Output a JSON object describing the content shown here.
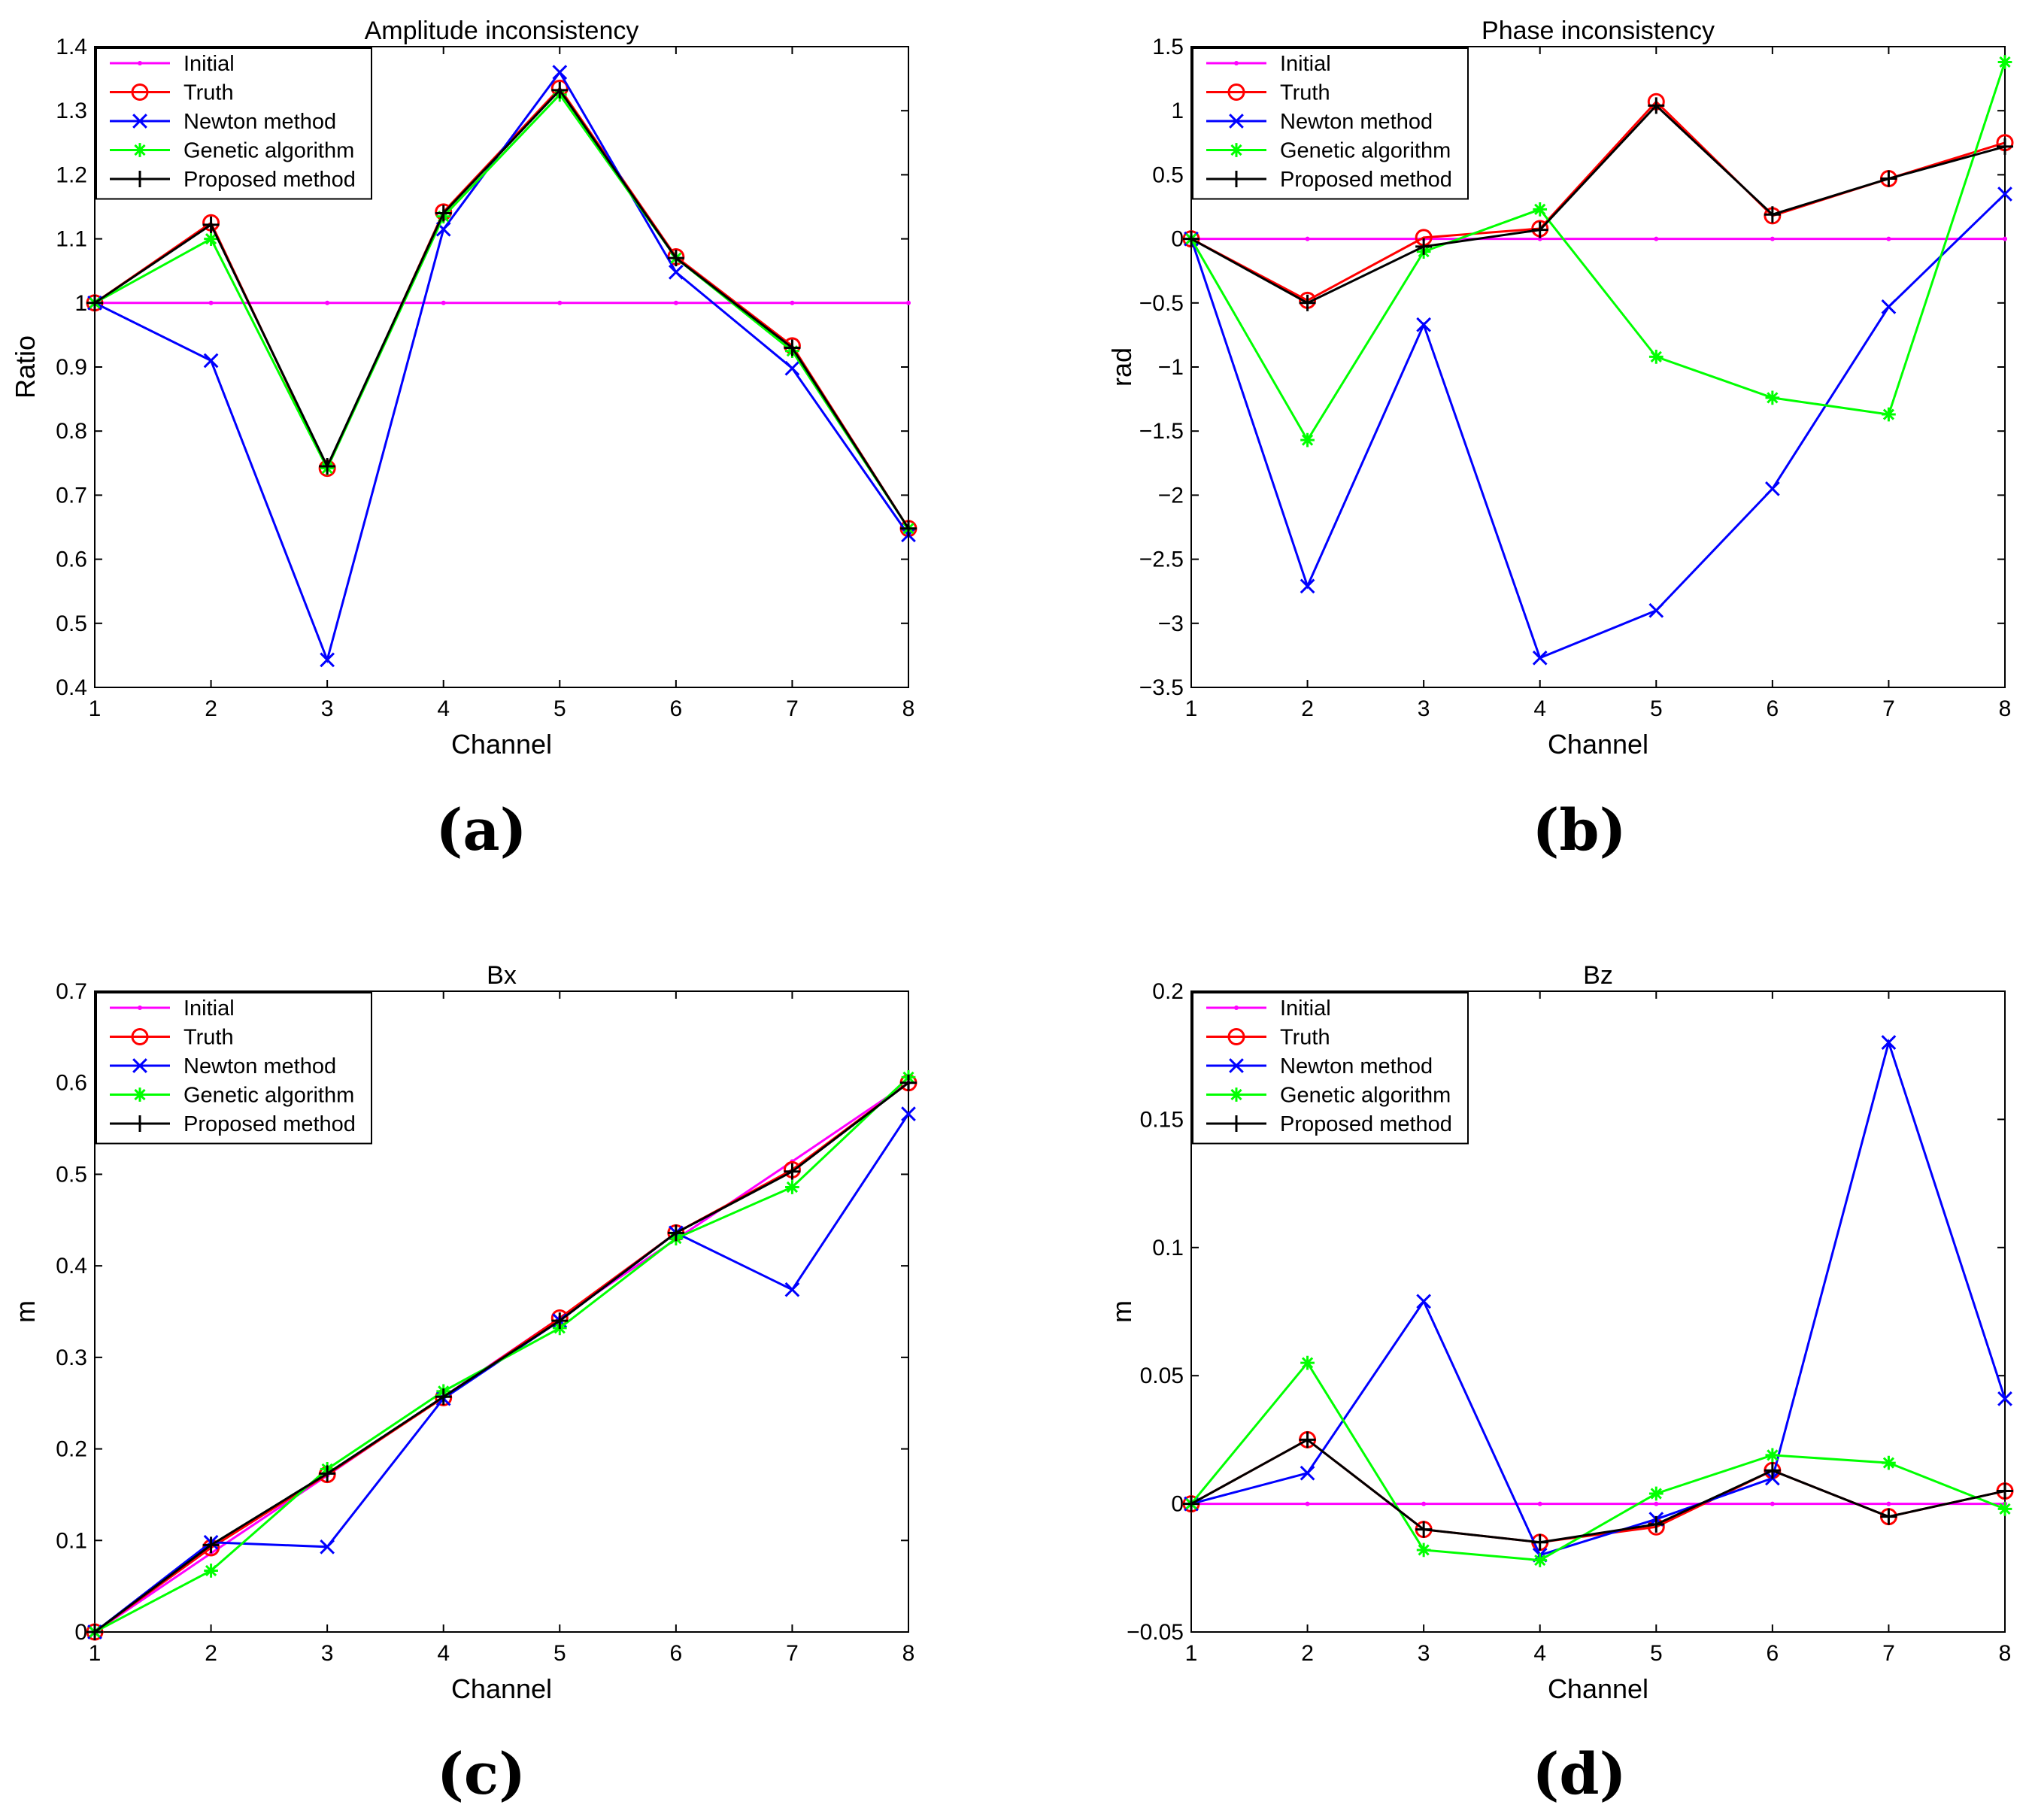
{
  "colors": {
    "Initial": "#ff00ff",
    "Truth": "#ff0000",
    "Newton method": "#0000ff",
    "Genetic algorithm": "#00ff00",
    "Proposed method": "#000000"
  },
  "markers": {
    "Initial": "dot",
    "Truth": "circle",
    "Newton method": "x",
    "Genetic algorithm": "star",
    "Proposed method": "plus"
  },
  "chart_data": [
    {
      "type": "line",
      "caption": "(a)",
      "title": "Amplitude inconsistency",
      "xlabel": "Channel",
      "ylabel": "Ratio",
      "xlim": [
        1,
        8
      ],
      "ylim": [
        0.4,
        1.4
      ],
      "xticks": [
        1,
        2,
        3,
        4,
        5,
        6,
        7,
        8
      ],
      "xtick_labels": [
        "1",
        "2",
        "3",
        "4",
        "5",
        "6",
        "7",
        "8"
      ],
      "yticks": [
        0.4,
        0.5,
        0.6,
        0.7,
        0.8,
        0.9,
        1.0,
        1.1,
        1.2,
        1.3,
        1.4
      ],
      "ytick_labels": [
        "0.4",
        "0.5",
        "0.6",
        "0.7",
        "0.8",
        "0.9",
        "1",
        "1.1",
        "1.2",
        "1.3",
        "1.4"
      ],
      "legend_position": "top-left",
      "x": [
        1,
        2,
        3,
        4,
        5,
        6,
        7,
        8
      ],
      "series": [
        {
          "name": "Initial",
          "values": [
            1,
            1,
            1,
            1,
            1,
            1,
            1,
            1
          ]
        },
        {
          "name": "Truth",
          "values": [
            1.0,
            1.125,
            0.742,
            1.142,
            1.335,
            1.072,
            0.933,
            0.648
          ]
        },
        {
          "name": "Newton method",
          "values": [
            1.0,
            0.91,
            0.443,
            1.115,
            1.36,
            1.048,
            0.898,
            0.638
          ]
        },
        {
          "name": "Genetic algorithm",
          "values": [
            1.0,
            1.1,
            0.742,
            1.135,
            1.325,
            1.07,
            0.925,
            0.648
          ]
        },
        {
          "name": "Proposed method",
          "values": [
            1.0,
            1.122,
            0.745,
            1.14,
            1.332,
            1.07,
            0.93,
            0.648
          ]
        }
      ]
    },
    {
      "type": "line",
      "caption": "(b)",
      "title": "Phase inconsistency",
      "xlabel": "Channel",
      "ylabel": "rad",
      "xlim": [
        1,
        8
      ],
      "ylim": [
        -3.5,
        1.5
      ],
      "xticks": [
        1,
        2,
        3,
        4,
        5,
        6,
        7,
        8
      ],
      "xtick_labels": [
        "1",
        "2",
        "3",
        "4",
        "5",
        "6",
        "7",
        "8"
      ],
      "yticks": [
        -3.5,
        -3,
        -2.5,
        -2,
        -1.5,
        -1,
        -0.5,
        0,
        0.5,
        1,
        1.5
      ],
      "ytick_labels": [
        "−3.5",
        "−3",
        "−2.5",
        "−2",
        "−1.5",
        "−1",
        "−0.5",
        "0",
        "0.5",
        "1",
        "1.5"
      ],
      "legend_position": "top-left",
      "x": [
        1,
        2,
        3,
        4,
        5,
        6,
        7,
        8
      ],
      "series": [
        {
          "name": "Initial",
          "values": [
            0,
            0,
            0,
            0,
            0,
            0,
            0,
            0
          ]
        },
        {
          "name": "Truth",
          "values": [
            0,
            -0.48,
            0.01,
            0.08,
            1.07,
            0.18,
            0.47,
            0.75
          ]
        },
        {
          "name": "Newton method",
          "values": [
            0,
            -2.71,
            -0.67,
            -3.27,
            -2.9,
            -1.95,
            -0.53,
            0.35
          ]
        },
        {
          "name": "Genetic algorithm",
          "values": [
            0,
            -1.57,
            -0.1,
            0.23,
            -0.92,
            -1.24,
            -1.37,
            1.38
          ]
        },
        {
          "name": "Proposed method",
          "values": [
            0,
            -0.5,
            -0.06,
            0.07,
            1.04,
            0.19,
            0.47,
            0.72
          ]
        }
      ]
    },
    {
      "type": "line",
      "caption": "(c)",
      "title": "Bx",
      "xlabel": "Channel",
      "ylabel": "m",
      "xlim": [
        1,
        8
      ],
      "ylim": [
        0,
        0.7
      ],
      "xticks": [
        1,
        2,
        3,
        4,
        5,
        6,
        7,
        8
      ],
      "xtick_labels": [
        "1",
        "2",
        "3",
        "4",
        "5",
        "6",
        "7",
        "8"
      ],
      "yticks": [
        0,
        0.1,
        0.2,
        0.3,
        0.4,
        0.5,
        0.6,
        0.7
      ],
      "ytick_labels": [
        "0",
        "0.1",
        "0.2",
        "0.3",
        "0.4",
        "0.5",
        "0.6",
        "0.7"
      ],
      "legend_position": "top-left",
      "x": [
        1,
        2,
        3,
        4,
        5,
        6,
        7,
        8
      ],
      "series": [
        {
          "name": "Initial",
          "values": [
            0,
            0.086,
            0.171,
            0.257,
            0.343,
            0.429,
            0.514,
            0.6
          ]
        },
        {
          "name": "Truth",
          "values": [
            0,
            0.092,
            0.172,
            0.256,
            0.343,
            0.436,
            0.505,
            0.6
          ]
        },
        {
          "name": "Newton method",
          "values": [
            0,
            0.098,
            0.093,
            0.255,
            0.34,
            0.436,
            0.374,
            0.566
          ]
        },
        {
          "name": "Genetic algorithm",
          "values": [
            0,
            0.067,
            0.178,
            0.263,
            0.332,
            0.43,
            0.486,
            0.606
          ]
        },
        {
          "name": "Proposed method",
          "values": [
            0,
            0.095,
            0.173,
            0.257,
            0.34,
            0.436,
            0.503,
            0.6
          ]
        }
      ]
    },
    {
      "type": "line",
      "caption": "(d)",
      "title": "Bz",
      "xlabel": "Channel",
      "ylabel": "m",
      "xlim": [
        1,
        8
      ],
      "ylim": [
        -0.05,
        0.2
      ],
      "xticks": [
        1,
        2,
        3,
        4,
        5,
        6,
        7,
        8
      ],
      "xtick_labels": [
        "1",
        "2",
        "3",
        "4",
        "5",
        "6",
        "7",
        "8"
      ],
      "yticks": [
        -0.05,
        0,
        0.05,
        0.1,
        0.15,
        0.2
      ],
      "ytick_labels": [
        "−0.05",
        "0",
        "0.05",
        "0.1",
        "0.15",
        "0.2"
      ],
      "legend_position": "top-left",
      "x": [
        1,
        2,
        3,
        4,
        5,
        6,
        7,
        8
      ],
      "series": [
        {
          "name": "Initial",
          "values": [
            0,
            0,
            0,
            0,
            0,
            0,
            0,
            0
          ]
        },
        {
          "name": "Truth",
          "values": [
            0,
            0.025,
            -0.01,
            -0.015,
            -0.009,
            0.013,
            -0.005,
            0.005
          ]
        },
        {
          "name": "Newton method",
          "values": [
            0,
            0.012,
            0.079,
            -0.02,
            -0.006,
            0.01,
            0.18,
            0.041
          ]
        },
        {
          "name": "Genetic algorithm",
          "values": [
            0,
            0.055,
            -0.018,
            -0.022,
            0.004,
            0.019,
            0.016,
            -0.002
          ]
        },
        {
          "name": "Proposed method",
          "values": [
            0,
            0.025,
            -0.01,
            -0.015,
            -0.008,
            0.013,
            -0.005,
            0.005
          ]
        }
      ]
    }
  ]
}
